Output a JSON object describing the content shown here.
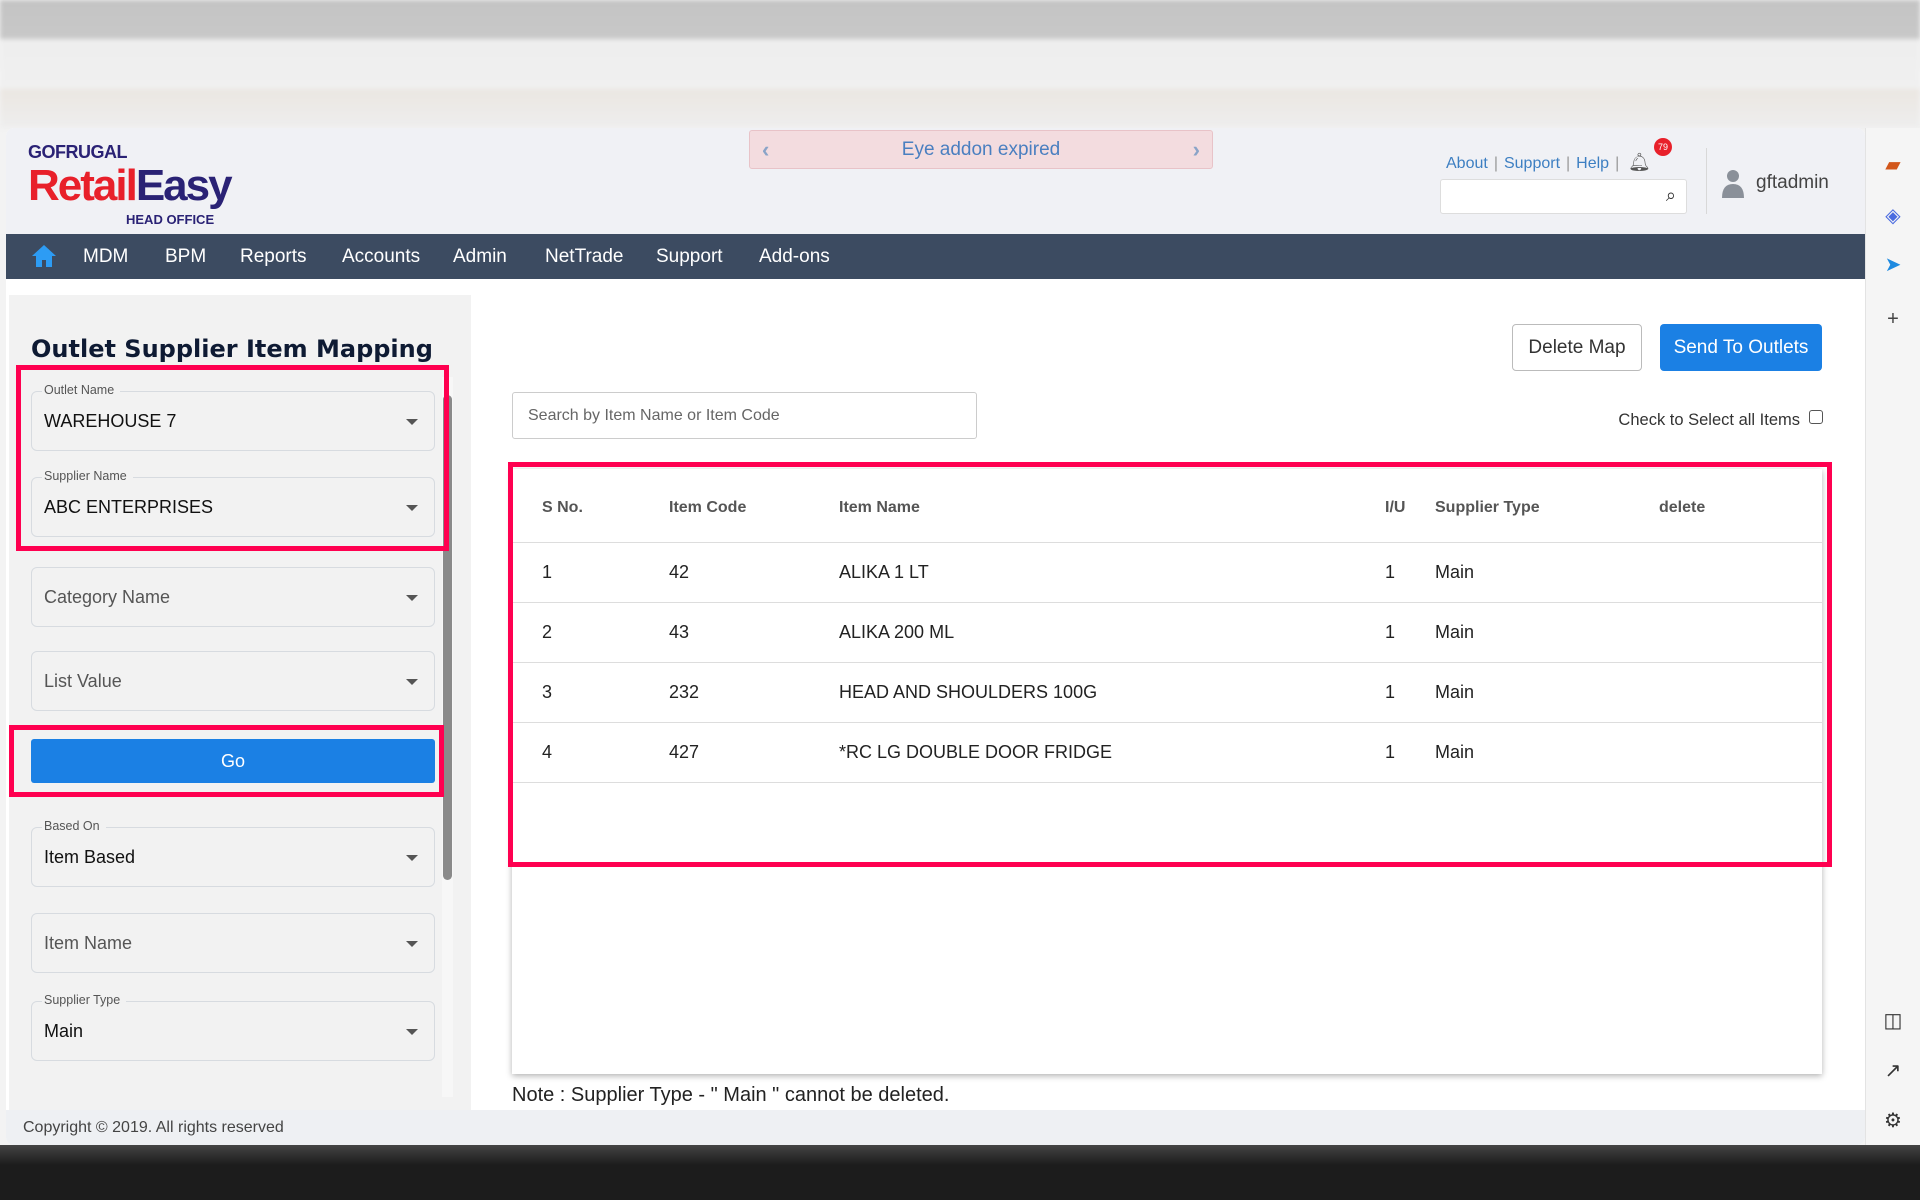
{
  "header": {
    "logo": {
      "brand": "GOFRUGAL",
      "product_a": "Retail",
      "product_b": "Easy",
      "edition": "HEAD OFFICE"
    },
    "banner": {
      "text": "Eye addon expired",
      "prev": "‹",
      "next": "›"
    },
    "links": [
      "About",
      "Support",
      "Help"
    ],
    "notification_count": "79",
    "search_icon": "⌕",
    "username": "gftadmin"
  },
  "nav": {
    "items": [
      "MDM",
      "BPM",
      "Reports",
      "Accounts",
      "Admin",
      "NetTrade",
      "Support",
      "Add-ons"
    ]
  },
  "left_panel": {
    "title": "Outlet Supplier Item Mapping",
    "fields": {
      "outlet_name": {
        "label": "Outlet Name",
        "value": "WAREHOUSE 7"
      },
      "supplier_name": {
        "label": "Supplier Name",
        "value": "ABC ENTERPRISES"
      },
      "category_name": {
        "placeholder": "Category Name"
      },
      "list_value": {
        "placeholder": "List Value"
      },
      "based_on": {
        "label": "Based On",
        "value": "Item Based"
      },
      "item_name": {
        "placeholder": "Item Name"
      },
      "supplier_type": {
        "label": "Supplier Type",
        "value": "Main"
      }
    },
    "go_label": "Go"
  },
  "main": {
    "delete_map_label": "Delete Map",
    "send_label": "Send To Outlets",
    "search_placeholder": "Search by Item Name or Item Code",
    "check_all_label": "Check to Select all Items",
    "check_all_checked": false,
    "table": {
      "columns": [
        "S No.",
        "Item Code",
        "Item Name",
        "I/U",
        "Supplier Type",
        "delete"
      ],
      "rows": [
        [
          "1",
          "42",
          "ALIKA 1 LT",
          "1",
          "Main",
          ""
        ],
        [
          "2",
          "43",
          "ALIKA 200 ML",
          "1",
          "Main",
          ""
        ],
        [
          "3",
          "232",
          "HEAD AND SHOULDERS 100G",
          "1",
          "Main",
          ""
        ],
        [
          "4",
          "427",
          "*RC LG DOUBLE DOOR FRIDGE",
          "1",
          "Main",
          ""
        ]
      ]
    },
    "note": "Note : Supplier Type - \" Main \" cannot be deleted."
  },
  "footer": {
    "copyright": "Copyright © 2019. All rights reserved"
  },
  "colors": {
    "nav_bg": "#3c4b61",
    "primary": "#1b80e4",
    "highlight": "#ff0050",
    "logo_red": "#e8202a",
    "logo_navy": "#2a2275"
  }
}
